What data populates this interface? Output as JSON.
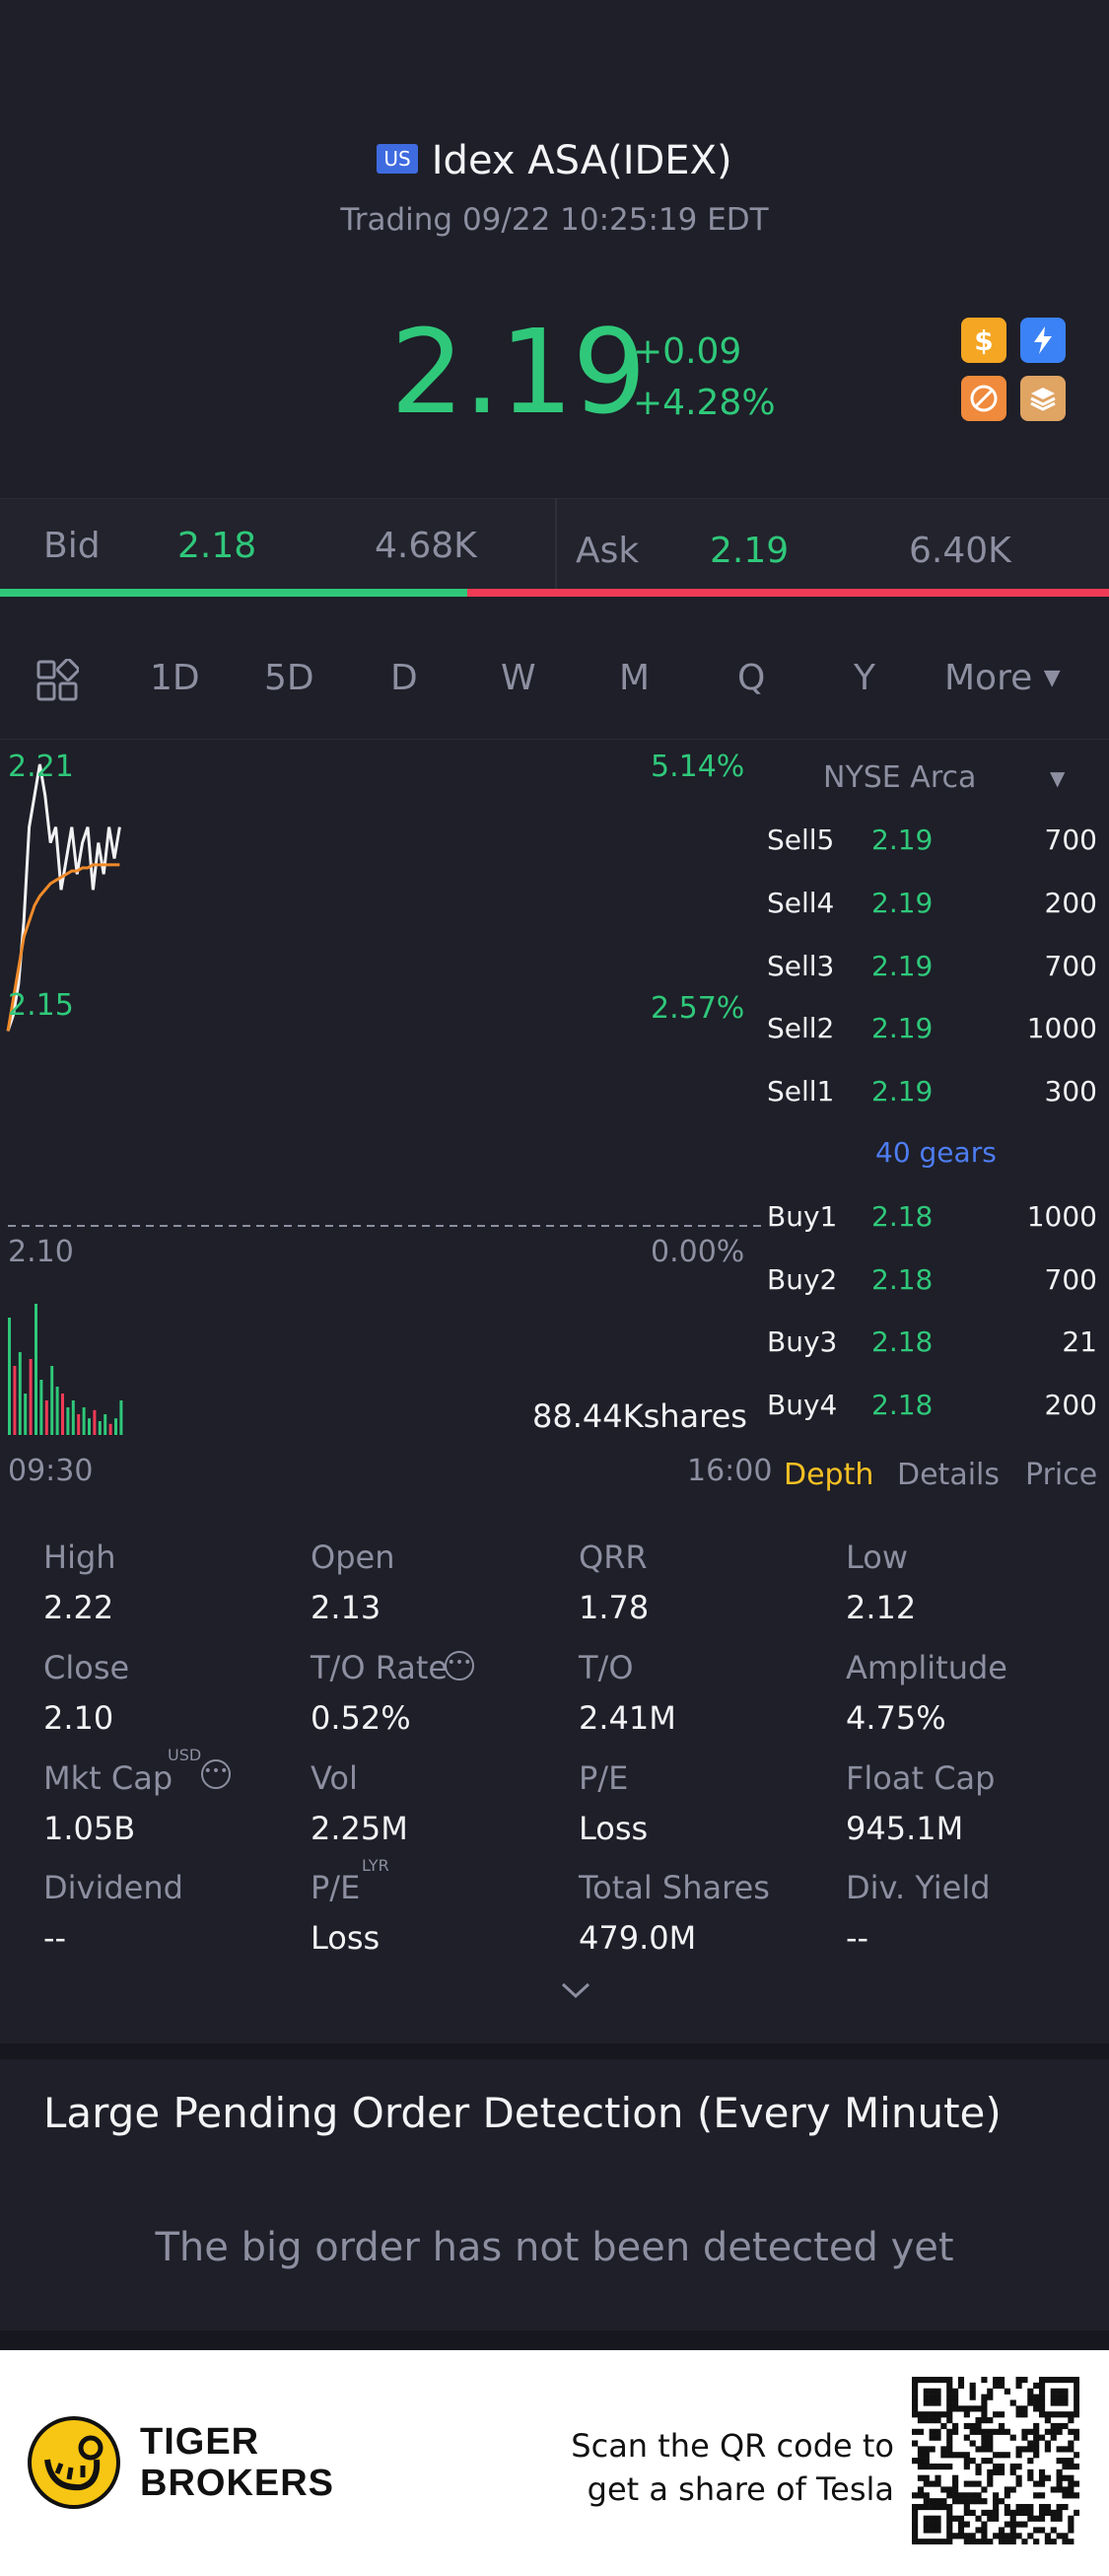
{
  "header": {
    "market_badge": "US",
    "title": "Idex ASA(IDEX)",
    "status": "Trading 09/22 10:25:19 EDT"
  },
  "quote": {
    "last_price": "2.19",
    "change": "+0.09",
    "change_pct": "+4.28%",
    "icons": [
      "dollar-icon",
      "lightning-icon",
      "no-short-icon",
      "layers-icon"
    ]
  },
  "bid_ask": {
    "bid_label": "Bid",
    "bid_price": "2.18",
    "bid_size": "4.68K",
    "ask_label": "Ask",
    "ask_price": "2.19",
    "ask_size": "6.40K",
    "bid_ratio": 0.42
  },
  "period_tabs": [
    "1D",
    "5D",
    "D",
    "W",
    "M",
    "Q",
    "Y"
  ],
  "period_more": "More",
  "active_tab": "1D",
  "chart": {
    "y_high": "2.21",
    "y_mid": "2.15",
    "y_low": "2.10",
    "pct_high": "5.14%",
    "pct_mid": "2.57%",
    "pct_low": "0.00%",
    "volume_label": "88.44Kshares",
    "time_start": "09:30",
    "time_end": "16:00"
  },
  "chart_data": {
    "type": "line",
    "title": "",
    "xlabel": "",
    "ylabel": "",
    "ylim": [
      2.1,
      2.21
    ],
    "x_range": [
      "09:30",
      "16:00"
    ],
    "series": [
      {
        "values": [
          2.125,
          2.13,
          2.14,
          2.16,
          2.19,
          2.2,
          2.21,
          2.2,
          2.185,
          2.19,
          2.17,
          2.18,
          2.19,
          2.175,
          2.185,
          2.19,
          2.17,
          2.185,
          2.175,
          2.19,
          2.18,
          2.19
        ]
      },
      {
        "values": [
          2.125,
          2.135,
          2.145,
          2.155,
          2.16,
          2.165,
          2.168,
          2.17,
          2.172,
          2.173,
          2.174,
          2.175,
          2.176,
          2.176,
          2.177,
          2.177,
          2.178,
          2.178,
          2.178,
          2.178,
          2.178,
          2.178
        ]
      }
    ],
    "volume": [
      0.85,
      0.5,
      0.6,
      0.3,
      0.55,
      0.95,
      0.4,
      0.25,
      0.5,
      0.35,
      0.3,
      0.2,
      0.25,
      0.15,
      0.2,
      0.12,
      0.18,
      0.1,
      0.15,
      0.08,
      0.12,
      0.25
    ]
  },
  "depth": {
    "exchange": "NYSE Arca",
    "sells": [
      {
        "label": "Sell5",
        "price": "2.19",
        "qty": "700"
      },
      {
        "label": "Sell4",
        "price": "2.19",
        "qty": "200"
      },
      {
        "label": "Sell3",
        "price": "2.19",
        "qty": "700"
      },
      {
        "label": "Sell2",
        "price": "2.19",
        "qty": "1000"
      },
      {
        "label": "Sell1",
        "price": "2.19",
        "qty": "300"
      }
    ],
    "gears": "40 gears",
    "buys": [
      {
        "label": "Buy1",
        "price": "2.18",
        "qty": "1000"
      },
      {
        "label": "Buy2",
        "price": "2.18",
        "qty": "700"
      },
      {
        "label": "Buy3",
        "price": "2.18",
        "qty": "21"
      },
      {
        "label": "Buy4",
        "price": "2.18",
        "qty": "200"
      }
    ],
    "tabs": [
      "Depth",
      "Details",
      "Price"
    ]
  },
  "stats": [
    {
      "label": "High",
      "value": "2.22"
    },
    {
      "label": "Open",
      "value": "2.13"
    },
    {
      "label": "QRR",
      "value": "1.78"
    },
    {
      "label": "Low",
      "value": "2.12"
    },
    {
      "label": "Close",
      "value": "2.10"
    },
    {
      "label": "T/O Rate",
      "value": "0.52%"
    },
    {
      "label": "T/O",
      "value": "2.41M"
    },
    {
      "label": "Amplitude",
      "value": "4.75%"
    },
    {
      "label": "Mkt Cap",
      "value": "1.05B"
    },
    {
      "label": "Vol",
      "value": "2.25M"
    },
    {
      "label": "P/E",
      "value": "Loss"
    },
    {
      "label": "Float Cap",
      "value": "945.1M"
    },
    {
      "label": "Dividend",
      "value": "--"
    },
    {
      "label": "P/E",
      "value": "Loss"
    },
    {
      "label": "Total Shares",
      "value": "479.0M"
    },
    {
      "label": "Div. Yield",
      "value": "--"
    }
  ],
  "stats_superscripts": {
    "mkt_cap": "USD",
    "pe_lyr": "LYR"
  },
  "pending": {
    "title": "Large Pending Order Detection (Every Minute)",
    "empty_text": "The big order has not been detected yet"
  },
  "promo": {
    "brand_line1": "TIGER",
    "brand_line2": "BROKERS",
    "cta_line1": "Scan the QR code to",
    "cta_line2": "get a share of Tesla"
  },
  "colors": {
    "up": "#2fc87a",
    "down": "#ef3b56",
    "accent": "#f5c024",
    "background": "#1e1f28"
  }
}
